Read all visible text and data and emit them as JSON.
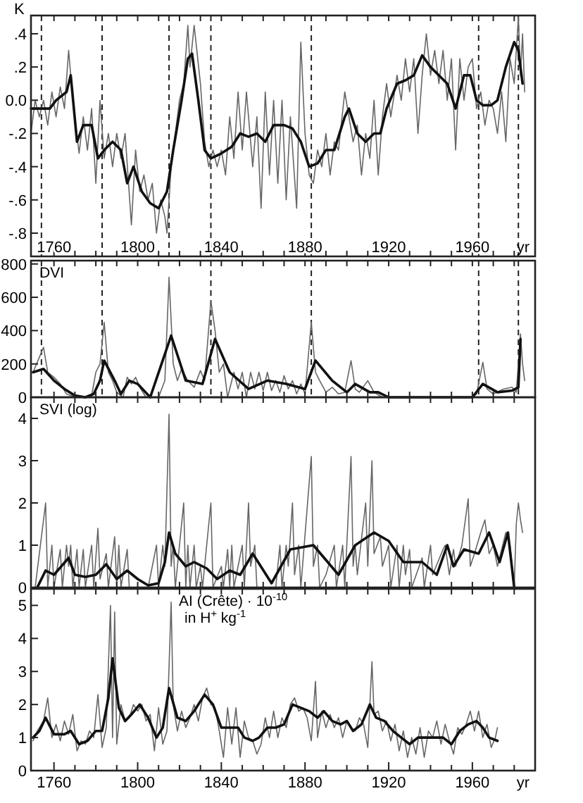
{
  "chart_data": [
    {
      "type": "line",
      "ylabel": "K",
      "xlabel": "yr",
      "xlim": [
        1749,
        1990
      ],
      "ylim": [
        -0.94,
        0.51
      ],
      "xticks": [
        {
          "value": 1760,
          "label": "1760"
        },
        {
          "value": 1770,
          "label": null
        },
        {
          "value": 1780,
          "label": null
        },
        {
          "value": 1790,
          "label": null
        },
        {
          "value": 1800,
          "label": "1800"
        },
        {
          "value": 1810,
          "label": null
        },
        {
          "value": 1820,
          "label": null
        },
        {
          "value": 1830,
          "label": null
        },
        {
          "value": 1840,
          "label": "1840"
        },
        {
          "value": 1850,
          "label": null
        },
        {
          "value": 1860,
          "label": null
        },
        {
          "value": 1870,
          "label": null
        },
        {
          "value": 1880,
          "label": "1880"
        },
        {
          "value": 1890,
          "label": null
        },
        {
          "value": 1900,
          "label": null
        },
        {
          "value": 1910,
          "label": null
        },
        {
          "value": 1920,
          "label": "1920"
        },
        {
          "value": 1930,
          "label": null
        },
        {
          "value": 1940,
          "label": null
        },
        {
          "value": 1950,
          "label": null
        },
        {
          "value": 1960,
          "label": "1960"
        },
        {
          "value": 1970,
          "label": null
        },
        {
          "value": 1980,
          "label": null
        }
      ],
      "yticks": [
        {
          "value": -0.8,
          "label": "-.8"
        },
        {
          "value": -0.6,
          "label": "-.6"
        },
        {
          "value": -0.4,
          "label": "-.4"
        },
        {
          "value": -0.2,
          "label": "-.2"
        },
        {
          "value": 0,
          "label": "0.0"
        },
        {
          "value": 0.2,
          "label": ".2"
        },
        {
          "value": 0.4,
          "label": ".4"
        }
      ],
      "ref_lines": [
        {
          "axis": "x",
          "value": 1754,
          "line_style": "dashed",
          "color": "#222222"
        },
        {
          "axis": "x",
          "value": 1783,
          "line_style": "dashed",
          "color": "#222222"
        },
        {
          "axis": "x",
          "value": 1815,
          "line_style": "dashed",
          "color": "#222222"
        },
        {
          "axis": "x",
          "value": 1835,
          "line_style": "dashed",
          "color": "#222222"
        },
        {
          "axis": "x",
          "value": 1883,
          "line_style": "dashed",
          "color": "#222222"
        },
        {
          "axis": "x",
          "value": 1963,
          "line_style": "dashed",
          "color": "#222222"
        },
        {
          "axis": "x",
          "value": 1982,
          "line_style": "dashed",
          "color": "#222222"
        }
      ],
      "series": [
        {
          "type": "line",
          "color": "#666666",
          "x": [
            1749,
            1751,
            1753,
            1755,
            1757,
            1759,
            1761,
            1763,
            1765,
            1767,
            1769,
            1772,
            1774,
            1776,
            1778,
            1780,
            1782,
            1784,
            1786,
            1788,
            1790,
            1792,
            1794,
            1797,
            1799,
            1801,
            1803,
            1805,
            1807,
            1809,
            1811,
            1813,
            1814,
            1816,
            1818,
            1820,
            1822,
            1824,
            1825,
            1827,
            1830,
            1832,
            1834,
            1836,
            1838,
            1840,
            1842,
            1844,
            1846,
            1848,
            1850,
            1852,
            1855,
            1857,
            1859,
            1861,
            1863,
            1865,
            1867,
            1869,
            1871,
            1873,
            1876,
            1878,
            1880,
            1882,
            1884,
            1886,
            1888,
            1890,
            1892,
            1894,
            1896,
            1899,
            1901,
            1903,
            1905,
            1907,
            1909,
            1911,
            1913,
            1915,
            1917,
            1919,
            1921,
            1924,
            1926,
            1928,
            1930,
            1932,
            1934,
            1936,
            1938,
            1940,
            1942,
            1944,
            1946,
            1948,
            1950,
            1952,
            1954,
            1956,
            1958,
            1960,
            1962,
            1964,
            1966,
            1968,
            1970,
            1972,
            1974,
            1976,
            1978,
            1980,
            1981,
            1982,
            1983,
            1984,
            1985
          ],
          "values": [
            -0.2,
            0,
            -0.1,
            0,
            -0.15,
            0.05,
            -0.1,
            0.08,
            -0.05,
            0.3,
            0,
            -0.32,
            -0.1,
            -0.3,
            -0.05,
            -0.5,
            0,
            -0.35,
            -0.2,
            -0.4,
            -0.2,
            -0.35,
            -0.2,
            -0.75,
            -0.3,
            -0.55,
            -0.45,
            -0.6,
            -0.5,
            -0.8,
            -0.6,
            -0.7,
            -0.8,
            -0.4,
            -0.2,
            0,
            0.1,
            0.45,
            0.2,
            0.45,
            0.1,
            -0.25,
            -0.4,
            -0.3,
            -0.4,
            -0.3,
            -0.45,
            -0.1,
            -0.35,
            0.05,
            -0.3,
            0.05,
            -0.4,
            -0.1,
            -0.65,
            0.05,
            -0.45,
            0,
            -0.5,
            0,
            -0.6,
            -0.1,
            -0.65,
            0.35,
            -0.2,
            -0.45,
            -0.5,
            -0.3,
            -0.4,
            -0.2,
            -0.45,
            -0.25,
            -0.3,
            0.05,
            -0.1,
            -0.25,
            -0.15,
            -0.45,
            -0.2,
            -0.35,
            0,
            -0.45,
            -0.1,
            0.1,
            -0.1,
            0.15,
            0,
            0.25,
            0.05,
            0.25,
            -0.2,
            0.15,
            0.4,
            0.15,
            0.3,
            0.1,
            0.3,
            0,
            0.25,
            -0.3,
            0.25,
            0,
            0.2,
            0.25,
            -0.05,
            0.05,
            -0.15,
            0,
            -0.05,
            -0.2,
            0.05,
            -0.25,
            0.25,
            0.1,
            0.3,
            0.5,
            0.15,
            0.4,
            0.05
          ]
        },
        {
          "type": "line",
          "color": "#111111",
          "x": [
            1749,
            1753,
            1758,
            1761,
            1766,
            1768,
            1771,
            1774,
            1778,
            1781,
            1784,
            1788,
            1792,
            1795,
            1798,
            1802,
            1806,
            1810,
            1814,
            1817,
            1821,
            1824,
            1826,
            1829,
            1832,
            1835,
            1840,
            1845,
            1849,
            1853,
            1857,
            1861,
            1865,
            1870,
            1874,
            1878,
            1882,
            1886,
            1890,
            1894,
            1899,
            1901,
            1905,
            1909,
            1913,
            1916,
            1919,
            1924,
            1928,
            1932,
            1936,
            1940,
            1944,
            1948,
            1952,
            1956,
            1959,
            1962,
            1965,
            1969,
            1972,
            1976,
            1980,
            1982,
            1984
          ],
          "values": [
            -0.05,
            -0.05,
            -0.05,
            0,
            0.05,
            0.15,
            -0.25,
            -0.15,
            -0.15,
            -0.35,
            -0.3,
            -0.25,
            -0.3,
            -0.5,
            -0.4,
            -0.55,
            -0.62,
            -0.65,
            -0.55,
            -0.3,
            0,
            0.25,
            0.28,
            0,
            -0.3,
            -0.35,
            -0.32,
            -0.28,
            -0.2,
            -0.22,
            -0.2,
            -0.25,
            -0.15,
            -0.15,
            -0.17,
            -0.25,
            -0.4,
            -0.38,
            -0.3,
            -0.3,
            -0.1,
            -0.05,
            -0.2,
            -0.25,
            -0.2,
            -0.2,
            -0.05,
            0.1,
            0.12,
            0.15,
            0.27,
            0.2,
            0.15,
            0.1,
            -0.05,
            0.15,
            0.15,
            0,
            -0.03,
            -0.03,
            0,
            0.2,
            0.35,
            0.3,
            0.1
          ]
        }
      ]
    },
    {
      "type": "line",
      "ylabel": "DVI",
      "tick_labels": "y",
      "xlim": [
        1749,
        1990
      ],
      "ylim": [
        0,
        820
      ],
      "xticks": [
        {
          "value": 1760,
          "label": null
        },
        {
          "value": 1770,
          "label": null
        },
        {
          "value": 1780,
          "label": null
        },
        {
          "value": 1790,
          "label": null
        },
        {
          "value": 1800,
          "label": null
        },
        {
          "value": 1810,
          "label": null
        },
        {
          "value": 1820,
          "label": null
        },
        {
          "value": 1830,
          "label": null
        },
        {
          "value": 1840,
          "label": null
        },
        {
          "value": 1850,
          "label": null
        },
        {
          "value": 1860,
          "label": null
        },
        {
          "value": 1870,
          "label": null
        },
        {
          "value": 1880,
          "label": null
        },
        {
          "value": 1890,
          "label": null
        },
        {
          "value": 1900,
          "label": null
        },
        {
          "value": 1910,
          "label": null
        },
        {
          "value": 1920,
          "label": null
        },
        {
          "value": 1930,
          "label": null
        },
        {
          "value": 1940,
          "label": null
        },
        {
          "value": 1950,
          "label": null
        },
        {
          "value": 1960,
          "label": null
        },
        {
          "value": 1970,
          "label": null
        },
        {
          "value": 1980,
          "label": null
        }
      ],
      "yticks": [
        0,
        200,
        400,
        600,
        800
      ],
      "ref_lines": [
        {
          "axis": "x",
          "value": 1754,
          "line_style": "dashed",
          "color": "#222222"
        },
        {
          "axis": "x",
          "value": 1783,
          "line_style": "dashed",
          "color": "#222222"
        },
        {
          "axis": "x",
          "value": 1835,
          "line_style": "dashed",
          "color": "#222222"
        },
        {
          "axis": "x",
          "value": 1883,
          "line_style": "dashed",
          "color": "#222222"
        },
        {
          "axis": "x",
          "value": 1963,
          "line_style": "dashed",
          "color": "#222222"
        },
        {
          "axis": "x",
          "value": 1982,
          "line_style": "dashed",
          "color": "#222222"
        }
      ],
      "series": [
        {
          "type": "line",
          "color": "#666666",
          "x": [
            1750,
            1755,
            1757,
            1760,
            1763,
            1766,
            1770,
            1775,
            1778,
            1780,
            1782,
            1784,
            1786,
            1788,
            1790,
            1793,
            1795,
            1797,
            1799,
            1801,
            1804,
            1810,
            1813,
            1815,
            1817,
            1819,
            1821,
            1824,
            1827,
            1830,
            1832,
            1835,
            1837,
            1839,
            1841,
            1843,
            1846,
            1848,
            1850,
            1852,
            1854,
            1856,
            1858,
            1860,
            1862,
            1864,
            1866,
            1868,
            1870,
            1872,
            1874,
            1876,
            1878,
            1880,
            1883,
            1885,
            1887,
            1890,
            1893,
            1896,
            1899,
            1902,
            1904,
            1906,
            1910,
            1913,
            1917,
            1960,
            1962,
            1965,
            1967,
            1970,
            1975,
            1979,
            1981,
            1983,
            1984,
            1985
          ],
          "values": [
            150,
            300,
            150,
            120,
            80,
            20,
            0,
            0,
            10,
            150,
            200,
            450,
            150,
            100,
            30,
            0,
            120,
            80,
            120,
            60,
            0,
            0,
            100,
            720,
            200,
            100,
            170,
            100,
            60,
            160,
            100,
            580,
            400,
            150,
            200,
            0,
            150,
            50,
            150,
            0,
            150,
            50,
            150,
            40,
            150,
            40,
            100,
            30,
            130,
            50,
            100,
            20,
            80,
            20,
            450,
            150,
            100,
            30,
            60,
            20,
            30,
            220,
            50,
            30,
            100,
            30,
            0,
            0,
            20,
            210,
            50,
            20,
            50,
            60,
            30,
            380,
            200,
            100
          ]
        },
        {
          "type": "line",
          "color": "#111111",
          "x": [
            1750,
            1755,
            1760,
            1765,
            1770,
            1775,
            1779,
            1782,
            1784,
            1789,
            1792,
            1796,
            1800,
            1806,
            1816,
            1823,
            1831,
            1837,
            1844,
            1853,
            1862,
            1871,
            1880,
            1885,
            1893,
            1900,
            1904,
            1911,
            1915,
            1920,
            1960,
            1965,
            1972,
            1979,
            1982,
            1983
          ],
          "values": [
            150,
            170,
            100,
            50,
            10,
            0,
            20,
            100,
            220,
            100,
            20,
            100,
            80,
            0,
            370,
            100,
            80,
            350,
            150,
            50,
            100,
            80,
            50,
            220,
            100,
            30,
            80,
            30,
            30,
            0,
            0,
            80,
            30,
            40,
            60,
            350
          ]
        }
      ]
    },
    {
      "type": "line",
      "ylabel": "SVI (log)",
      "tick_labels": "y",
      "xlim": [
        1749,
        1990
      ],
      "ylim": [
        0,
        4.5
      ],
      "xticks": [
        {
          "value": 1760,
          "label": null
        },
        {
          "value": 1770,
          "label": null
        },
        {
          "value": 1780,
          "label": null
        },
        {
          "value": 1790,
          "label": null
        },
        {
          "value": 1800,
          "label": null
        },
        {
          "value": 1810,
          "label": null
        },
        {
          "value": 1820,
          "label": null
        },
        {
          "value": 1830,
          "label": null
        },
        {
          "value": 1840,
          "label": null
        },
        {
          "value": 1850,
          "label": null
        },
        {
          "value": 1860,
          "label": null
        },
        {
          "value": 1870,
          "label": null
        },
        {
          "value": 1880,
          "label": null
        },
        {
          "value": 1890,
          "label": null
        },
        {
          "value": 1900,
          "label": null
        },
        {
          "value": 1910,
          "label": null
        },
        {
          "value": 1920,
          "label": null
        },
        {
          "value": 1930,
          "label": null
        },
        {
          "value": 1940,
          "label": null
        },
        {
          "value": 1950,
          "label": null
        },
        {
          "value": 1960,
          "label": null
        },
        {
          "value": 1970,
          "label": null
        },
        {
          "value": 1980,
          "label": null
        }
      ],
      "yticks": [
        0,
        1,
        2,
        3,
        4
      ],
      "series": [
        {
          "type": "line",
          "color": "#666666",
          "x": [
            1751,
            1756,
            1757,
            1759,
            1760,
            1763,
            1764,
            1766,
            1767,
            1768,
            1769,
            1771,
            1772,
            1774,
            1775,
            1778,
            1779,
            1781,
            1782,
            1785,
            1786,
            1789,
            1790,
            1791,
            1792,
            1795,
            1796,
            1805,
            1809,
            1810,
            1812,
            1813,
            1815,
            1816,
            1817,
            1818,
            1822,
            1823,
            1824,
            1825,
            1827,
            1828,
            1830,
            1831,
            1835,
            1836,
            1840,
            1841,
            1843,
            1844,
            1845,
            1846,
            1848,
            1850,
            1851,
            1853,
            1854,
            1856,
            1857,
            1866,
            1868,
            1869,
            1871,
            1872,
            1874,
            1875,
            1877,
            1878,
            1883,
            1884,
            1886,
            1887,
            1890,
            1894,
            1895,
            1898,
            1899,
            1902,
            1903,
            1904,
            1905,
            1909,
            1910,
            1912,
            1913,
            1916,
            1917,
            1920,
            1921,
            1924,
            1925,
            1927,
            1928,
            1930,
            1931,
            1936,
            1937,
            1940,
            1941,
            1946,
            1947,
            1949,
            1951,
            1952,
            1955,
            1958,
            1959,
            1961,
            1964,
            1966,
            1968,
            1970,
            1972,
            1976,
            1978,
            1980,
            1981,
            1982,
            1983,
            1984
          ],
          "values": [
            0,
            2,
            0,
            1,
            0,
            0.9,
            0,
            1,
            0.5,
            1,
            0,
            0.9,
            0,
            0.9,
            0,
            1,
            0,
            1.4,
            0.2,
            0.8,
            0,
            1.2,
            0,
            1,
            0,
            0.9,
            0,
            0,
            1,
            0,
            1,
            0.5,
            4.1,
            0.5,
            1,
            0,
            2,
            0,
            1,
            0,
            1,
            0,
            0.5,
            0,
            2,
            0,
            0.5,
            0,
            0.9,
            0,
            1,
            0,
            0.5,
            1,
            0,
            2,
            0.5,
            1,
            0,
            0,
            1,
            0,
            1,
            0.5,
            2,
            0.3,
            1,
            0,
            3.1,
            0.5,
            1,
            0,
            0.3,
            1,
            0,
            1,
            0,
            3.1,
            0.5,
            1,
            0.3,
            2,
            0.5,
            3,
            0.8,
            1.2,
            0.5,
            1,
            0,
            1,
            0,
            1,
            0.3,
            0.9,
            0,
            0.7,
            0,
            1,
            0.3,
            0.9,
            1,
            0.3,
            0.9,
            0.5,
            1,
            2.1,
            0.5,
            0.8,
            1.3,
            1.6,
            0.8,
            1,
            0.5,
            1.3,
            1,
            0,
            1.5,
            2,
            1.6,
            1.3
          ]
        },
        {
          "type": "line",
          "color": "#111111",
          "x": [
            1752,
            1756,
            1760,
            1767,
            1770,
            1775,
            1780,
            1785,
            1790,
            1795,
            1800,
            1805,
            1810,
            1813,
            1815,
            1818,
            1823,
            1827,
            1833,
            1838,
            1844,
            1849,
            1855,
            1864,
            1873,
            1884,
            1896,
            1904,
            1913,
            1920,
            1927,
            1936,
            1943,
            1948,
            1951,
            1956,
            1963,
            1968,
            1973,
            1977,
            1980
          ],
          "values": [
            0,
            0.4,
            0.3,
            0.7,
            0.3,
            0.25,
            0.3,
            0.55,
            0.2,
            0.4,
            0.2,
            0.05,
            0.1,
            0.6,
            1.3,
            0.8,
            0.5,
            0.6,
            0.45,
            0.2,
            0.4,
            0.3,
            0.8,
            0.1,
            0.9,
            1,
            0.3,
            1,
            1.3,
            1.1,
            0.6,
            0.6,
            0.3,
            1,
            0.5,
            0.9,
            0.8,
            1.3,
            0.6,
            1.3,
            0
          ]
        }
      ]
    },
    {
      "type": "line",
      "ylabel": "AI (Crête) · 10$^{-10}$\nin H$^{+}$ kg$^{-1}$",
      "xlabel": "yr",
      "xlim": [
        1749,
        1990
      ],
      "ylim": [
        0,
        5.5
      ],
      "xticks": [
        {
          "value": 1760,
          "label": "1760"
        },
        {
          "value": 1770,
          "label": null
        },
        {
          "value": 1780,
          "label": null
        },
        {
          "value": 1790,
          "label": null
        },
        {
          "value": 1800,
          "label": "1800"
        },
        {
          "value": 1810,
          "label": null
        },
        {
          "value": 1820,
          "label": null
        },
        {
          "value": 1830,
          "label": null
        },
        {
          "value": 1840,
          "label": "1840"
        },
        {
          "value": 1850,
          "label": null
        },
        {
          "value": 1860,
          "label": null
        },
        {
          "value": 1870,
          "label": null
        },
        {
          "value": 1880,
          "label": "1880"
        },
        {
          "value": 1890,
          "label": null
        },
        {
          "value": 1900,
          "label": null
        },
        {
          "value": 1910,
          "label": null
        },
        {
          "value": 1920,
          "label": "1920"
        },
        {
          "value": 1930,
          "label": null
        },
        {
          "value": 1940,
          "label": null
        },
        {
          "value": 1950,
          "label": null
        },
        {
          "value": 1960,
          "label": "1960"
        },
        {
          "value": 1970,
          "label": null
        },
        {
          "value": 1980,
          "label": null
        }
      ],
      "yticks": [
        0,
        1,
        2,
        3,
        4,
        5
      ],
      "series": [
        {
          "type": "line",
          "color": "#666666",
          "x": [
            1750,
            1752,
            1755,
            1757,
            1759,
            1761,
            1763,
            1765,
            1767,
            1769,
            1771,
            1773,
            1775,
            1777,
            1779,
            1781,
            1783,
            1785,
            1787,
            1788,
            1789,
            1790,
            1792,
            1794,
            1796,
            1798,
            1800,
            1802,
            1804,
            1806,
            1808,
            1810,
            1812,
            1814,
            1816,
            1817,
            1819,
            1821,
            1823,
            1825,
            1827,
            1829,
            1831,
            1833,
            1835,
            1837,
            1839,
            1841,
            1843,
            1845,
            1847,
            1849,
            1851,
            1853,
            1855,
            1857,
            1859,
            1861,
            1863,
            1865,
            1867,
            1869,
            1871,
            1873,
            1875,
            1877,
            1879,
            1881,
            1883,
            1885,
            1886,
            1888,
            1890,
            1892,
            1894,
            1896,
            1898,
            1900,
            1902,
            1904,
            1906,
            1908,
            1910,
            1912,
            1913,
            1915,
            1917,
            1919,
            1921,
            1923,
            1925,
            1927,
            1929,
            1931,
            1933,
            1935,
            1937,
            1939,
            1941,
            1943,
            1945,
            1947,
            1949,
            1951,
            1953,
            1955,
            1957,
            1959,
            1961,
            1963,
            1965,
            1967,
            1969,
            1971,
            1972
          ],
          "values": [
            0.9,
            1.2,
            1.5,
            2.2,
            1,
            1.4,
            0.9,
            1.5,
            1.1,
            1.7,
            0.6,
            0.9,
            0.8,
            1.2,
            1,
            2.3,
            0.7,
            1.3,
            5,
            1,
            4.8,
            0.8,
            2,
            1.5,
            1.6,
            2,
            1.8,
            2,
            1.5,
            1.7,
            0.6,
            1.9,
            0.8,
            1.2,
            5.1,
            2,
            1.2,
            1.8,
            1.3,
            1.6,
            2,
            1.5,
            2.2,
            2.5,
            2,
            1.9,
            1.2,
            0.4,
            1.9,
            0.8,
            1.9,
            0.4,
            1.5,
            1,
            0.9,
            0.5,
            0.8,
            1.6,
            1,
            1.8,
            1,
            1.6,
            1.3,
            2,
            2.2,
            1.8,
            1.9,
            1.6,
            0.9,
            2.7,
            1,
            1.8,
            1.3,
            1.7,
            1.3,
            1.6,
            1,
            1.5,
            1.3,
            1.2,
            1.6,
            1.4,
            0.7,
            3.3,
            1.7,
            1.8,
            1.2,
            1.5,
            0.9,
            1.4,
            0.6,
            1.2,
            0.4,
            1,
            0.5,
            1.3,
            0.4,
            1.2,
            1,
            1.5,
            0.8,
            1.4,
            0.9,
            0.5,
            1.3,
            1.1,
            1.4,
            1.8,
            1.2,
            1.8,
            1,
            1.4,
            0.7,
            1,
            1.3
          ]
        },
        {
          "type": "line",
          "color": "#111111",
          "x": [
            1750,
            1753,
            1756,
            1760,
            1765,
            1768,
            1772,
            1776,
            1780,
            1783,
            1786,
            1788,
            1791,
            1794,
            1797,
            1801,
            1805,
            1809,
            1812,
            1815,
            1819,
            1823,
            1827,
            1832,
            1836,
            1840,
            1844,
            1848,
            1851,
            1855,
            1858,
            1862,
            1866,
            1870,
            1874,
            1878,
            1882,
            1886,
            1889,
            1893,
            1897,
            1900,
            1903,
            1907,
            1911,
            1914,
            1918,
            1922,
            1926,
            1930,
            1934,
            1938,
            1942,
            1946,
            1950,
            1954,
            1958,
            1962,
            1965,
            1968,
            1972
          ],
          "values": [
            1,
            1.2,
            1.6,
            1.1,
            1.1,
            1.2,
            0.8,
            0.9,
            1.2,
            1.2,
            2.2,
            3.4,
            1.9,
            1.5,
            1.7,
            2,
            1.6,
            1,
            1.3,
            2.5,
            1.6,
            1.5,
            1.8,
            2.3,
            2,
            1.3,
            1.3,
            1.3,
            1,
            0.9,
            1,
            1.3,
            1.3,
            1.4,
            2,
            1.9,
            1.8,
            1.6,
            1.8,
            1.5,
            1.4,
            1.5,
            1.2,
            1.4,
            2,
            1.6,
            1.5,
            1.2,
            1,
            0.8,
            1,
            1,
            1,
            1,
            0.8,
            1.2,
            1.4,
            1.5,
            1.3,
            1,
            0.9
          ]
        }
      ]
    }
  ]
}
